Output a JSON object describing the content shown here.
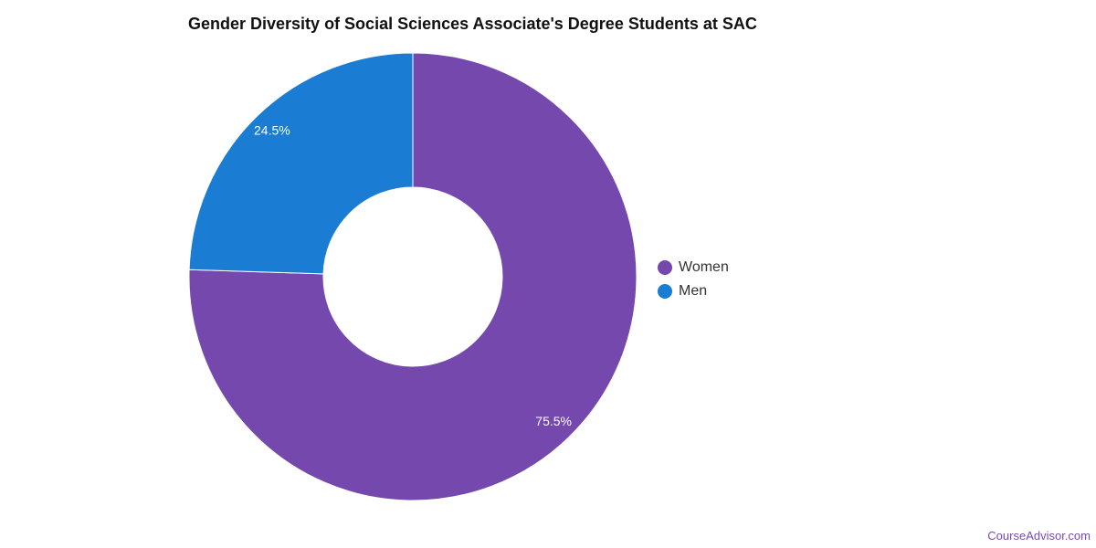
{
  "title": "Gender Diversity of Social Sciences Associate's Degree Students at SAC",
  "brand": "CourseAdvisor.com",
  "chart_data": {
    "type": "pie",
    "variant": "donut",
    "title": "Gender Diversity of Social Sciences Associate's Degree Students at SAC",
    "categories": [
      "Women",
      "Men"
    ],
    "values": [
      75.5,
      24.5
    ],
    "labels": [
      "75.5%",
      "24.5%"
    ],
    "colors": [
      "#7548ae",
      "#1a7dd3"
    ],
    "legend": {
      "position": "right",
      "entries": [
        "Women",
        "Men"
      ]
    },
    "grid": false
  }
}
